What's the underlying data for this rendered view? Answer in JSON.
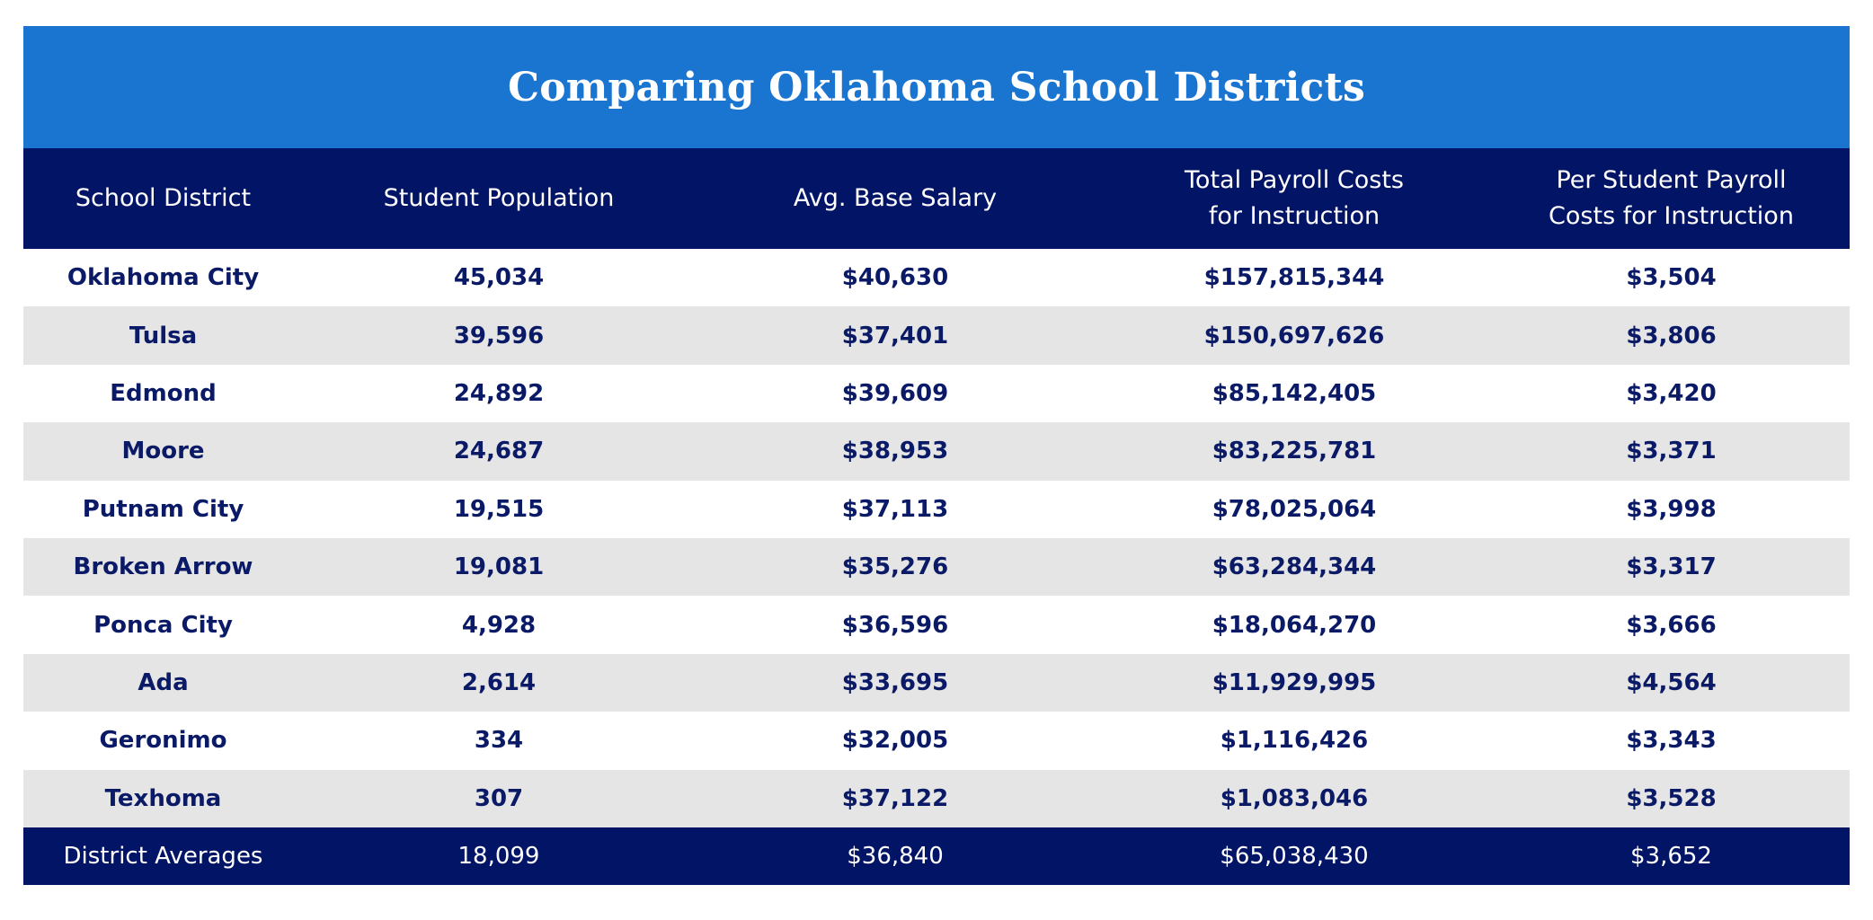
{
  "title": "Comparing Oklahoma School Districts",
  "colors": {
    "title_bg": "#1a75d1",
    "header_bg": "#021466",
    "row_alt_bg": "#e5e5e5",
    "row_text": "#0b1a66",
    "header_text": "#ffffff"
  },
  "columns": [
    {
      "lines": [
        "School District"
      ]
    },
    {
      "lines": [
        "Student Population"
      ]
    },
    {
      "lines": [
        "Avg. Base Salary"
      ]
    },
    {
      "lines": [
        "Total Payroll Costs",
        "for Instruction"
      ]
    },
    {
      "lines": [
        "Per Student Payroll",
        "Costs for Instruction"
      ]
    }
  ],
  "rows": [
    [
      "Oklahoma City",
      "45,034",
      "$40,630",
      "$157,815,344",
      "$3,504"
    ],
    [
      "Tulsa",
      "39,596",
      "$37,401",
      "$150,697,626",
      "$3,806"
    ],
    [
      "Edmond",
      "24,892",
      "$39,609",
      "$85,142,405",
      "$3,420"
    ],
    [
      "Moore",
      "24,687",
      "$38,953",
      "$83,225,781",
      "$3,371"
    ],
    [
      "Putnam City",
      "19,515",
      "$37,113",
      "$78,025,064",
      "$3,998"
    ],
    [
      "Broken Arrow",
      "19,081",
      "$35,276",
      "$63,284,344",
      "$3,317"
    ],
    [
      "Ponca City",
      "4,928",
      "$36,596",
      "$18,064,270",
      "$3,666"
    ],
    [
      "Ada",
      "2,614",
      "$33,695",
      "$11,929,995",
      "$4,564"
    ],
    [
      "Geronimo",
      "334",
      "$32,005",
      "$1,116,426",
      "$3,343"
    ],
    [
      "Texhoma",
      "307",
      "$37,122",
      "$1,083,046",
      "$3,528"
    ]
  ],
  "footer": [
    "District Averages",
    "18,099",
    "$36,840",
    "$65,038,430",
    "$3,652"
  ]
}
